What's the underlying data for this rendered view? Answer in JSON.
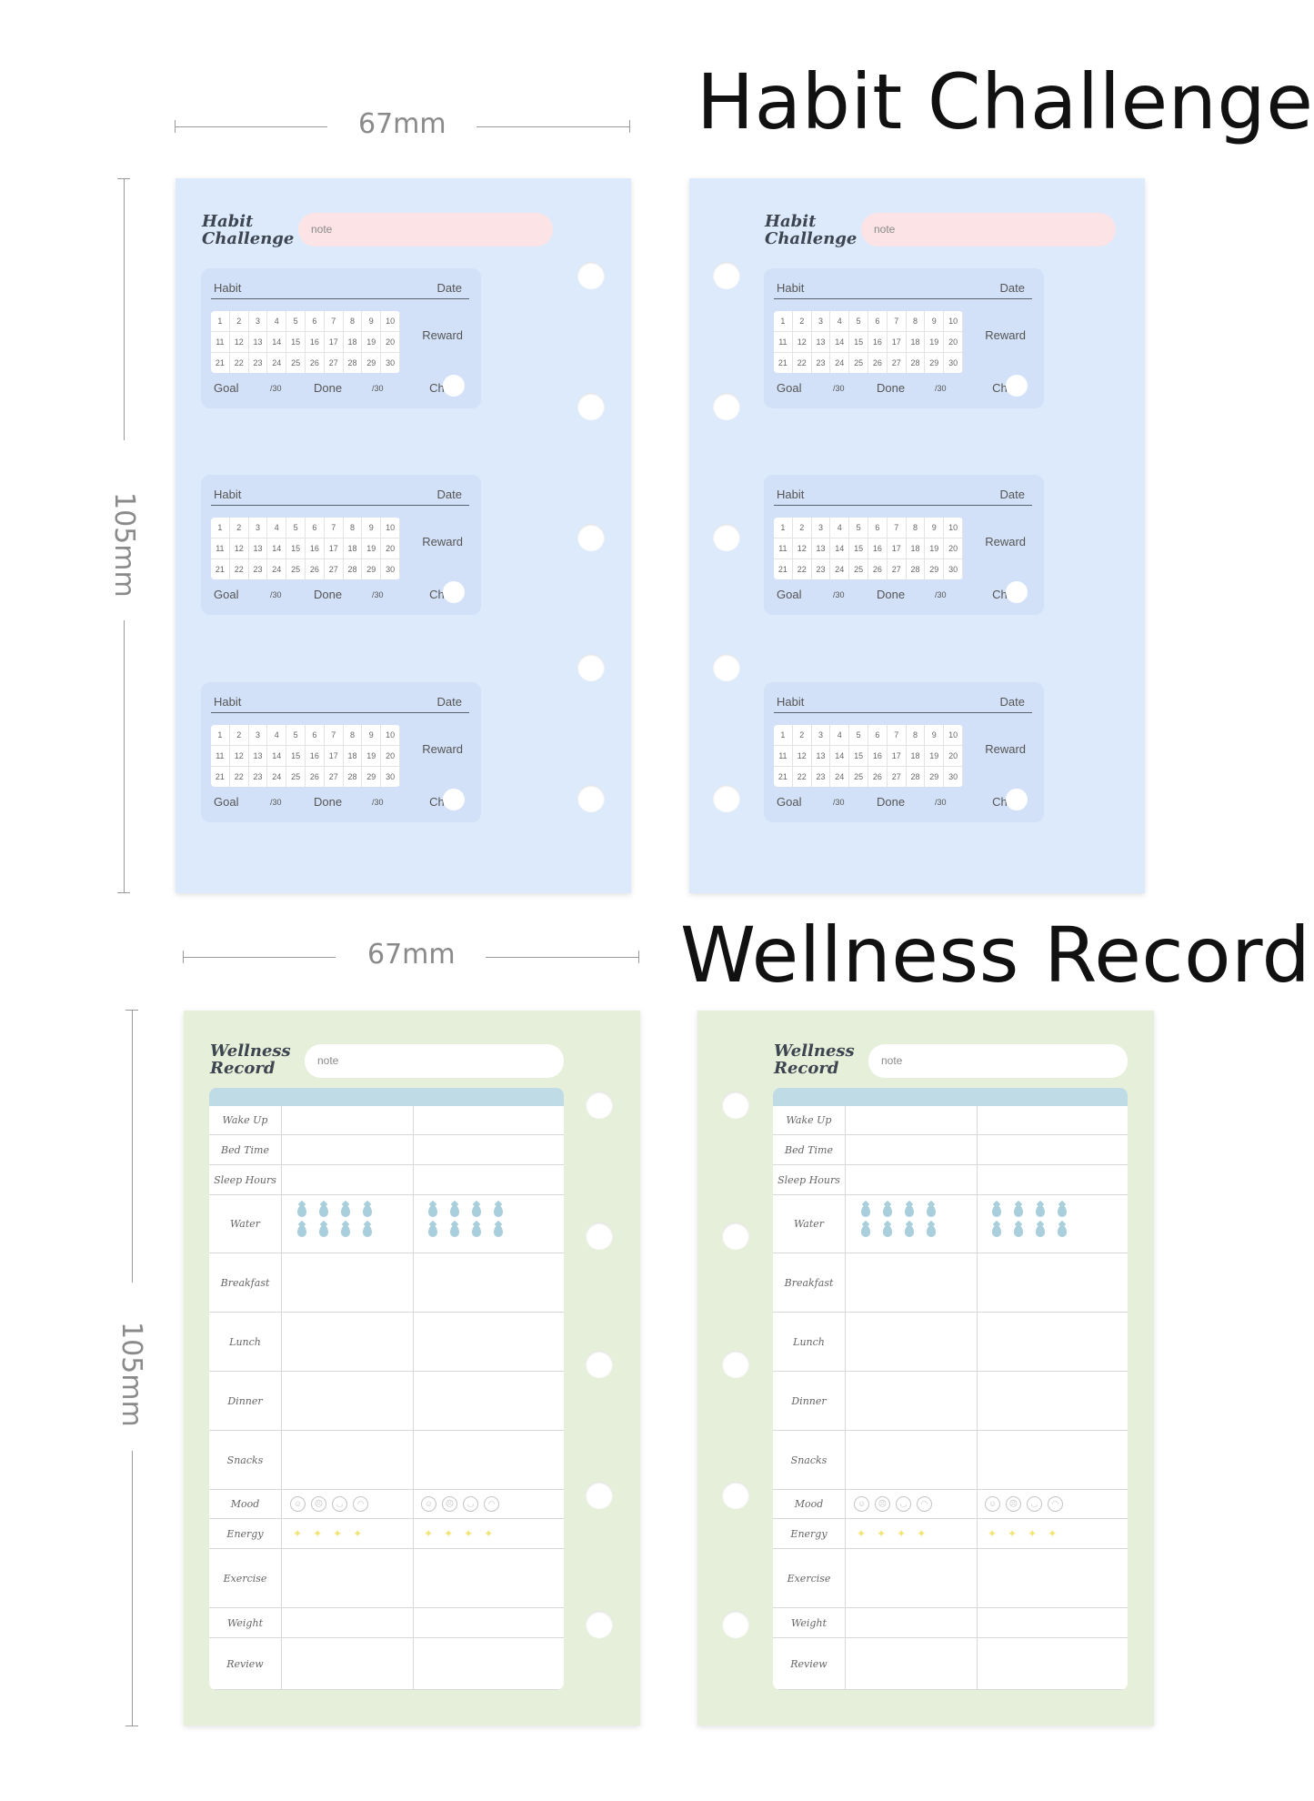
{
  "headings": {
    "habit_title": "Habit Challenge",
    "wellness_title": "Wellness Record",
    "width_label": "67mm",
    "height_label": "105mm"
  },
  "habit_page": {
    "title_line1": "Habit",
    "title_line2": "Challenge",
    "note_placeholder": "note",
    "card": {
      "habit_label": "Habit",
      "date_label": "Date",
      "reward_label": "Reward",
      "goal_label": "Goal",
      "goal_total": "/30",
      "done_label": "Done",
      "done_total": "/30",
      "check_label": "Check",
      "days": [
        "1",
        "2",
        "3",
        "4",
        "5",
        "6",
        "7",
        "8",
        "9",
        "10",
        "11",
        "12",
        "13",
        "14",
        "15",
        "16",
        "17",
        "18",
        "19",
        "20",
        "21",
        "22",
        "23",
        "24",
        "25",
        "26",
        "27",
        "28",
        "29",
        "30"
      ]
    }
  },
  "wellness_page": {
    "title_line1": "Wellness",
    "title_line2": "Record",
    "note_placeholder": "note",
    "rows": [
      "Wake Up",
      "Bed Time",
      "Sleep Hours",
      "Water",
      "Breakfast",
      "Lunch",
      "Dinner",
      "Snacks",
      "Mood",
      "Energy",
      "Exercise",
      "Weight",
      "Review"
    ],
    "water_drops_per_column": 8,
    "mood_faces": [
      "☺",
      "☹",
      "◡",
      "◠"
    ],
    "energy_stars": [
      "✦",
      "✦",
      "✦",
      "✦"
    ]
  },
  "colors": {
    "habit_page_bg": "#dceafc",
    "habit_card_bg": "#d2e1f7",
    "note_pink": "#fbe3e6",
    "wellness_page_bg": "#e6efd9",
    "wellness_band": "#bfdbe5",
    "water_drop": "#a9cfdc",
    "energy_star": "#f2e476"
  }
}
